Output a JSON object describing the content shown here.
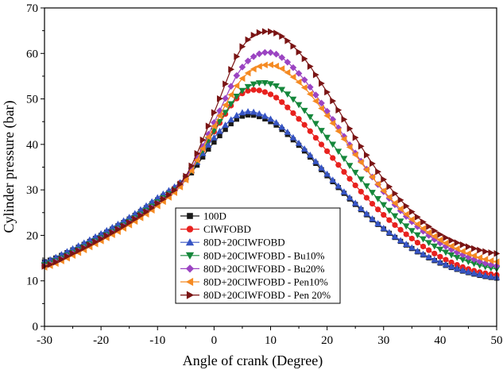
{
  "chart_data": {
    "type": "line",
    "title": "",
    "xlabel": "Angle of crank (Degree)",
    "ylabel": "Cylinder pressure (bar)",
    "xlim": [
      -30,
      50
    ],
    "ylim": [
      0,
      70
    ],
    "xticks": [
      -30,
      -20,
      -10,
      0,
      10,
      20,
      30,
      40,
      50
    ],
    "yticks": [
      0,
      10,
      20,
      30,
      40,
      50,
      60,
      70
    ],
    "grid": false,
    "legend_position": "lower-center",
    "x": [
      -30,
      -25,
      -20,
      -15,
      -10,
      -5,
      0,
      5,
      10,
      15,
      20,
      25,
      30,
      35,
      40,
      45,
      50
    ],
    "series": [
      {
        "name": "100D",
        "color": "#1a1a1a",
        "marker": "square",
        "values": [
          14.2,
          16.8,
          20.0,
          23.6,
          27.8,
          32.3,
          40.5,
          46.2,
          45.0,
          39.8,
          33.1,
          26.8,
          21.4,
          17.1,
          13.9,
          11.8,
          10.6
        ]
      },
      {
        "name": "CIWFOBD",
        "color": "#e8211e",
        "marker": "circle",
        "values": [
          13.8,
          16.5,
          19.7,
          23.3,
          27.6,
          32.9,
          42.8,
          51.2,
          51.0,
          45.6,
          38.5,
          31.0,
          24.5,
          19.3,
          15.3,
          12.6,
          11.3
        ]
      },
      {
        "name": "80D+20CIWFOBD",
        "color": "#3654c4",
        "marker": "triangle-up",
        "values": [
          14.3,
          17.1,
          20.4,
          24.0,
          28.3,
          32.8,
          41.5,
          47.0,
          45.6,
          40.3,
          33.5,
          27.1,
          21.6,
          17.3,
          14.1,
          12.0,
          10.8
        ]
      },
      {
        "name": "80D+20CIWFOBD - Bu10%",
        "color": "#15873b",
        "marker": "triangle-down",
        "values": [
          13.5,
          16.2,
          19.4,
          23.0,
          27.3,
          32.5,
          43.0,
          51.8,
          53.3,
          48.7,
          41.5,
          33.8,
          26.7,
          21.0,
          16.9,
          14.2,
          12.6
        ]
      },
      {
        "name": "80D+20CIWFOBD - Bu20%",
        "color": "#9b44c2",
        "marker": "diamond",
        "values": [
          13.3,
          16.0,
          19.2,
          22.8,
          27.0,
          32.5,
          44.8,
          57.0,
          60.2,
          55.6,
          47.3,
          38.1,
          29.6,
          23.0,
          18.3,
          15.2,
          13.3
        ]
      },
      {
        "name": "80D+20CIWFOBD - Pen10%",
        "color": "#f58a22",
        "marker": "triangle-left",
        "values": [
          13.0,
          15.6,
          18.8,
          22.3,
          26.5,
          32.2,
          44.0,
          54.5,
          57.5,
          53.7,
          46.3,
          37.7,
          29.8,
          23.5,
          19.0,
          16.0,
          14.2
        ]
      },
      {
        "name": "80D+20CIWFOBD - Pen 20%",
        "color": "#7a1414",
        "marker": "triangle-right",
        "values": [
          13.2,
          16.0,
          19.2,
          22.8,
          27.0,
          33.0,
          47.0,
          61.5,
          64.8,
          60.3,
          51.5,
          41.5,
          32.3,
          25.2,
          20.2,
          17.5,
          16.0
        ]
      }
    ]
  }
}
